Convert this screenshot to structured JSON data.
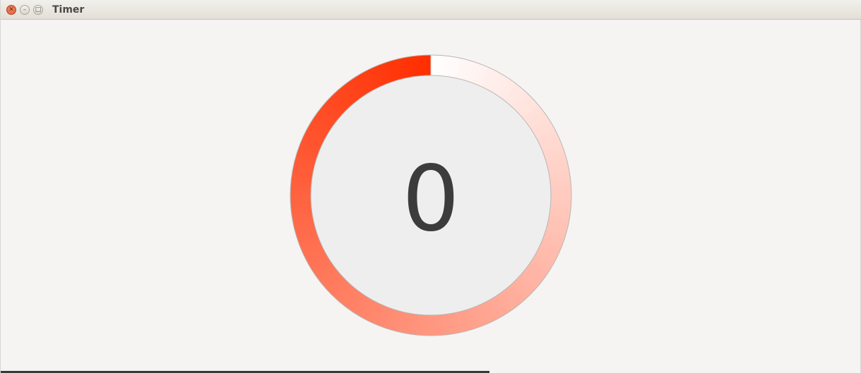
{
  "window": {
    "title": "Timer",
    "controls": [
      {
        "name": "close",
        "glyph": "✕"
      },
      {
        "name": "minimize",
        "glyph": "–"
      },
      {
        "name": "maximize",
        "glyph": "□"
      }
    ]
  },
  "timer": {
    "value": "0",
    "elapsed_fraction": 0.0,
    "colors": {
      "arc_start": "#ff2e00",
      "arc_end": "#ffffff",
      "face": "#eeeeee",
      "digits": "#3c3c3c"
    }
  }
}
